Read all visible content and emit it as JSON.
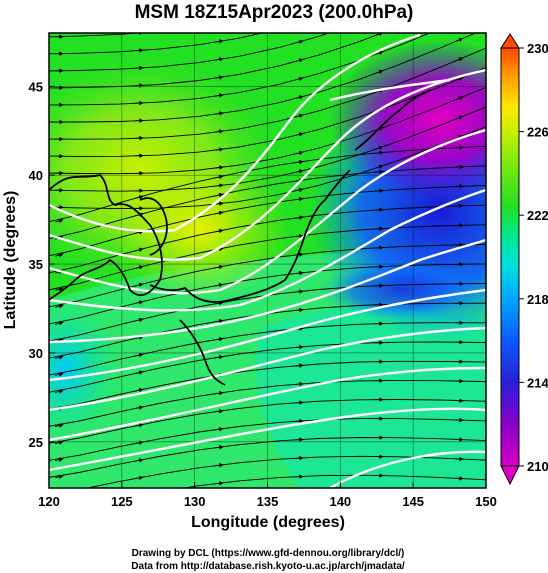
{
  "title": "MSM 18Z15Apr2023 (200.0hPa)",
  "x_axis": {
    "label": "Longitude (degrees)",
    "range": [
      120,
      150
    ],
    "ticks": [
      "120",
      "125",
      "130",
      "135",
      "140",
      "145",
      "150"
    ]
  },
  "y_axis": {
    "label": "Latitude  (degrees)",
    "range": [
      22.4,
      48
    ],
    "ticks": [
      "25",
      "30",
      "35",
      "40",
      "45"
    ]
  },
  "colorbar": {
    "range": [
      210,
      230
    ],
    "ticks": [
      "230",
      "226",
      "222",
      "218",
      "214",
      "210"
    ],
    "colors": [
      "#d400c8",
      "#8a00c8",
      "#2a1fd8",
      "#0a5aff",
      "#00c8ff",
      "#00e890",
      "#22e022",
      "#7ae810",
      "#c8f000",
      "#ffe600",
      "#ffa000",
      "#ff4a00"
    ]
  },
  "map_colors": {
    "land_line": "#000000",
    "contour": "#ffffff",
    "streamline": "#000000"
  },
  "credits": {
    "line1": "Drawing by DCL (https://www.gfd-dennou.org/library/dcl/)",
    "line2": "Data from http://database.rish.kyoto-u.ac.jp/arch/jmadata/"
  }
}
